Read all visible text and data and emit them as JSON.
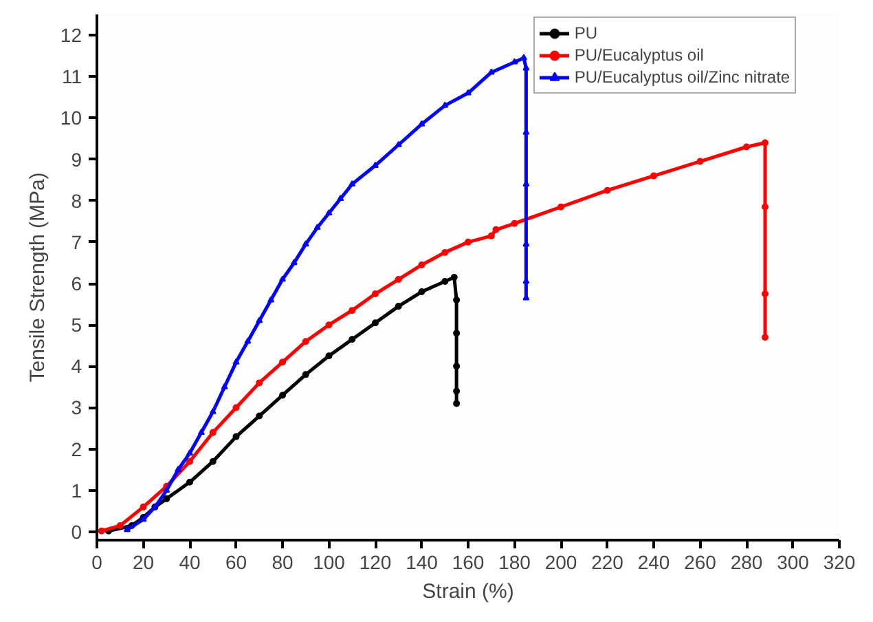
{
  "chart_data": {
    "type": "line",
    "xlabel": "Strain (%)",
    "ylabel": "Tensile Strength (MPa)",
    "xlim": [
      0,
      320
    ],
    "ylim": [
      -0.2,
      12.5
    ],
    "xticks": [
      0,
      20,
      40,
      60,
      80,
      100,
      120,
      140,
      160,
      180,
      200,
      220,
      240,
      260,
      280,
      300,
      320
    ],
    "yticks": [
      0,
      1,
      2,
      3,
      4,
      5,
      6,
      7,
      8,
      9,
      10,
      11,
      12
    ],
    "grid": false,
    "legend": "top right",
    "line_style": "solid",
    "series": [
      {
        "name": "PU",
        "color": "#000000",
        "marker": "circle",
        "x": [
          5,
          15,
          20,
          25,
          30,
          40,
          50,
          60,
          70,
          80,
          90,
          100,
          110,
          120,
          130,
          140,
          150,
          154,
          155,
          155,
          155,
          155,
          155
        ],
        "values": [
          0.02,
          0.15,
          0.35,
          0.6,
          0.8,
          1.2,
          1.7,
          2.3,
          2.8,
          3.3,
          3.8,
          4.25,
          4.65,
          5.05,
          5.45,
          5.8,
          6.05,
          6.15,
          5.6,
          4.8,
          4.0,
          3.4,
          3.1
        ]
      },
      {
        "name": "PU/Eucalyptus oil",
        "color": "#ff0000",
        "marker": "circle",
        "x": [
          2,
          10,
          20,
          30,
          40,
          50,
          60,
          70,
          80,
          90,
          100,
          110,
          120,
          130,
          140,
          150,
          160,
          170,
          172,
          180,
          200,
          220,
          240,
          260,
          280,
          288,
          288,
          288,
          288
        ],
        "values": [
          0.02,
          0.15,
          0.6,
          1.1,
          1.7,
          2.4,
          3.0,
          3.6,
          4.1,
          4.6,
          5.0,
          5.35,
          5.75,
          6.1,
          6.45,
          6.75,
          7.0,
          7.15,
          7.3,
          7.45,
          7.85,
          8.25,
          8.6,
          8.95,
          9.3,
          9.4,
          7.85,
          5.75,
          4.7
        ]
      },
      {
        "name": "PU/Eucalyptus oil/Zinc nitrate",
        "color": "#0000ff",
        "marker": "triangle",
        "x": [
          13,
          20,
          25,
          30,
          35,
          40,
          45,
          50,
          55,
          60,
          65,
          70,
          75,
          80,
          85,
          90,
          95,
          100,
          105,
          110,
          120,
          130,
          140,
          150,
          160,
          170,
          180,
          184,
          185,
          185,
          185,
          185,
          185,
          185
        ],
        "values": [
          0.05,
          0.3,
          0.6,
          1.0,
          1.5,
          1.9,
          2.4,
          2.9,
          3.5,
          4.1,
          4.6,
          5.1,
          5.6,
          6.1,
          6.5,
          6.95,
          7.35,
          7.7,
          8.05,
          8.4,
          8.85,
          9.35,
          9.85,
          10.3,
          10.6,
          11.1,
          11.35,
          11.45,
          11.2,
          9.65,
          8.4,
          6.95,
          6.05,
          5.65
        ]
      }
    ]
  }
}
